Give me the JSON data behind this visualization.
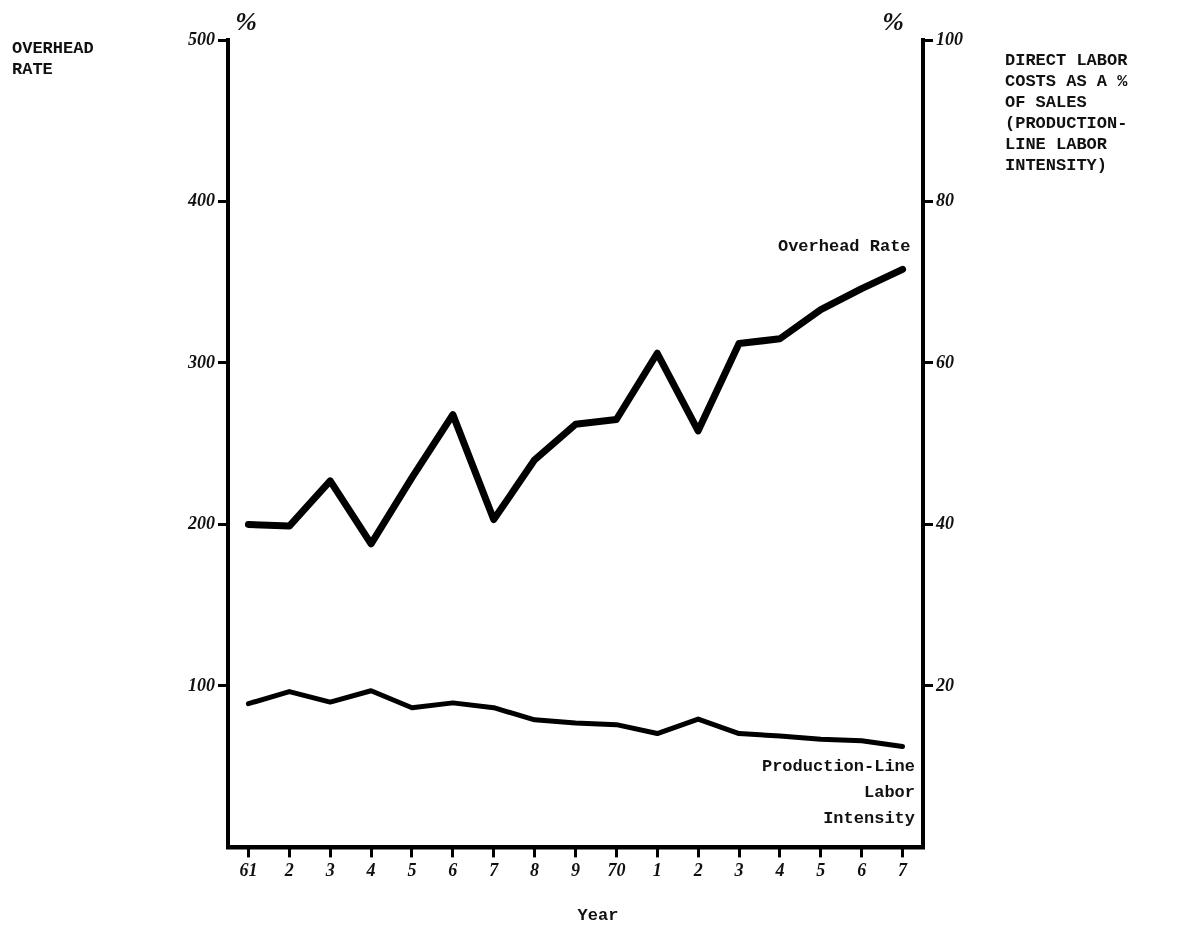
{
  "chart_data": {
    "type": "line",
    "xlabel": "Year",
    "categories": [
      "61",
      "2",
      "3",
      "4",
      "5",
      "6",
      "7",
      "8",
      "9",
      "70",
      "1",
      "2",
      "3",
      "4",
      "5",
      "6",
      "7"
    ],
    "series": [
      {
        "name": "Overhead Rate",
        "color": "#000000",
        "values": [
          200,
          199,
          227,
          188,
          229,
          268,
          203,
          240,
          262,
          265,
          306,
          258,
          312,
          315,
          333,
          346,
          358
        ]
      },
      {
        "name": "Production-Line Labor Intensity",
        "color": "#000000",
        "axis": "y2",
        "values": [
          17.8,
          19.3,
          18.0,
          19.4,
          17.3,
          17.9,
          17.3,
          15.8,
          15.4,
          15.2,
          14.1,
          15.9,
          14.1,
          13.8,
          13.4,
          13.2,
          12.5
        ]
      }
    ],
    "ylim": [
      0,
      500
    ],
    "yticks": [
      100,
      200,
      300,
      400,
      500
    ],
    "y2lim": [
      0,
      100
    ],
    "y2ticks": [
      20,
      40,
      60,
      80,
      100
    ],
    "annotations": [
      "OVERHEAD RATE",
      "DIRECT LABOR COSTS AS A % OF SALES (PRODUCTION-LINE LABOR INTENSITY)",
      "%",
      "%"
    ],
    "grid": false,
    "legend": false,
    "marker": "none",
    "line_style": "solid"
  }
}
